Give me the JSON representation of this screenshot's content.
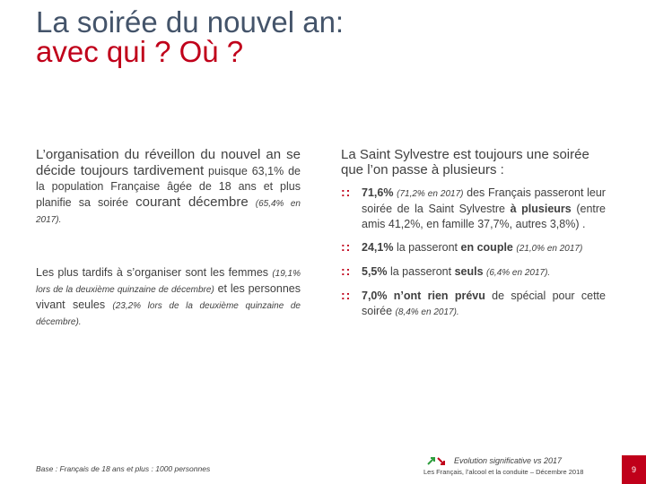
{
  "header": {
    "title": [
      "La soirée du nouvel an:",
      "avec qui ? Où ?"
    ]
  },
  "left": {
    "p1": [
      "L’organisation du réveillon du nouvel an se décide toujours tardivement",
      "puisque 63,1% de la population Française âgée de 18 ans et plus planifie sa soirée",
      "courant décembre",
      "(65,4% en 2017)."
    ],
    "p2": [
      "Les plus tardifs à s’organiser sont les femmes",
      "(19,1% lors de la deuxième quinzaine de décembre)",
      "et les personnes vivant seules",
      "(23,2% lors de la deuxième quinzaine de décembre)."
    ]
  },
  "right": {
    "intro": "La Saint Sylvestre est toujours une soirée que l’on passe à plusieurs :",
    "bullets": [
      [
        "71,6%",
        "(71,2% en 2017)",
        "des Français passeront leur soirée de la Saint Sylvestre",
        "à plusieurs",
        "(entre amis 41,2%, en famille 37,7%, autres 3,8%) ."
      ],
      [
        "24,1%",
        "la passeront",
        "en couple",
        "(21,0% en 2017)"
      ],
      [
        "5,5%",
        "la passeront",
        "seuls",
        "(6,4% en 2017)."
      ],
      [
        "7,0% n’ont rien prévu",
        "de spécial pour cette soirée",
        "(8,4% en 2017)."
      ]
    ]
  },
  "footer": {
    "base": "Base : Français de 18 ans et plus : 1000 personnes",
    "legend": "Evolution significative vs 2017",
    "source": "Les Français, l’alcool et la conduite – Décembre 2018",
    "page": "9"
  }
}
